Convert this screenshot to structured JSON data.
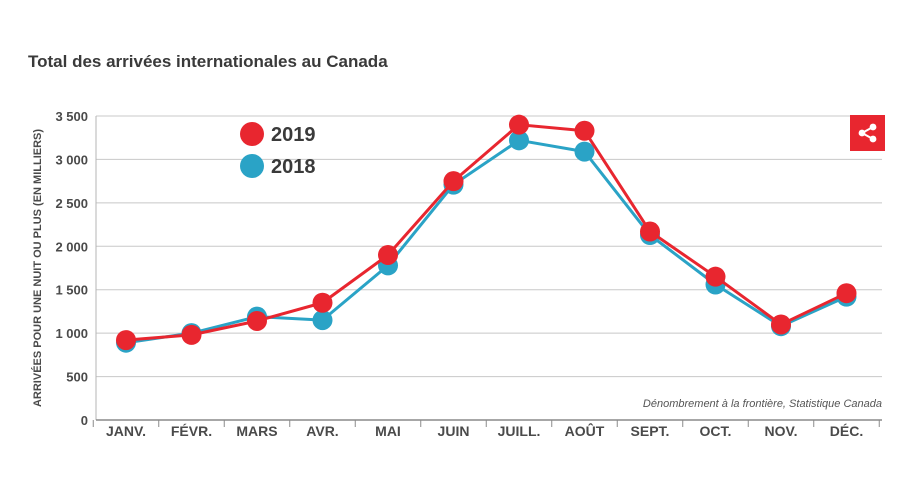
{
  "page_title": "Total des arrivées internationales au Canada",
  "share_icon": "share-icon",
  "colors": {
    "series_2019": "#e8262f",
    "series_2018": "#2aa3c6",
    "grid": "#c8c8c8",
    "text": "#4a4a4a",
    "share_button": "#e8262f"
  },
  "chart_data": {
    "type": "line",
    "title": "Total des arrivées internationales au Canada",
    "ylabel": "ARRIVÉES POUR UNE NUIT OU PLUS (EN MILLIERS)",
    "xlabel": "",
    "categories": [
      "JANV.",
      "FÉVR.",
      "MARS",
      "AVR.",
      "MAI",
      "JUIN",
      "JUILL.",
      "AOÛT",
      "SEPT.",
      "OCT.",
      "NOV.",
      "DÉC."
    ],
    "ylim": [
      0,
      3500
    ],
    "yticks": [
      0,
      500,
      1000,
      1500,
      2000,
      2500,
      3000,
      3500
    ],
    "ytick_labels": [
      "0",
      "500",
      "1 000",
      "1 500",
      "2 000",
      "2 500",
      "3 000",
      "3 500"
    ],
    "grid": true,
    "legend_position": "top-left",
    "series": [
      {
        "name": "2019",
        "color": "#e8262f",
        "values": [
          920,
          980,
          1140,
          1350,
          1900,
          2750,
          3400,
          3330,
          2170,
          1650,
          1100,
          1460
        ]
      },
      {
        "name": "2018",
        "color": "#2aa3c6",
        "values": [
          890,
          1000,
          1190,
          1150,
          1780,
          2710,
          3220,
          3090,
          2130,
          1560,
          1080,
          1420
        ]
      }
    ],
    "source": "Dénombrement à la frontière, Statistique Canada"
  }
}
